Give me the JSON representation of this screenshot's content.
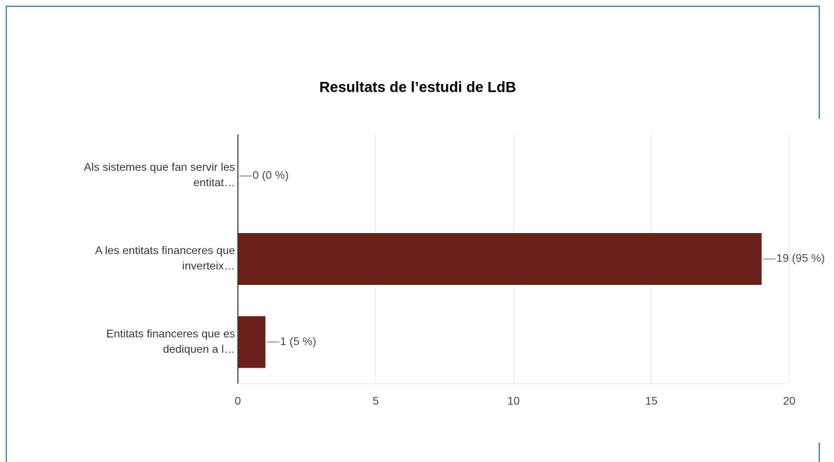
{
  "chart_data": {
    "type": "barh",
    "title": "Resultats de l’estudi de LdB",
    "categories": [
      "Als sistemes que fan servir les entitat…",
      "A les entitats financeres que inverteix…",
      "Entitats financeres que es dediquen a l…"
    ],
    "values": [
      0,
      19,
      1
    ],
    "value_labels": [
      "0 (0 %)",
      "19 (95 %)",
      "1 (5 %)"
    ],
    "color": "#6b2019",
    "xlim": [
      0,
      20
    ],
    "xticks": [
      0,
      5,
      10,
      15,
      20
    ],
    "grid": true
  }
}
